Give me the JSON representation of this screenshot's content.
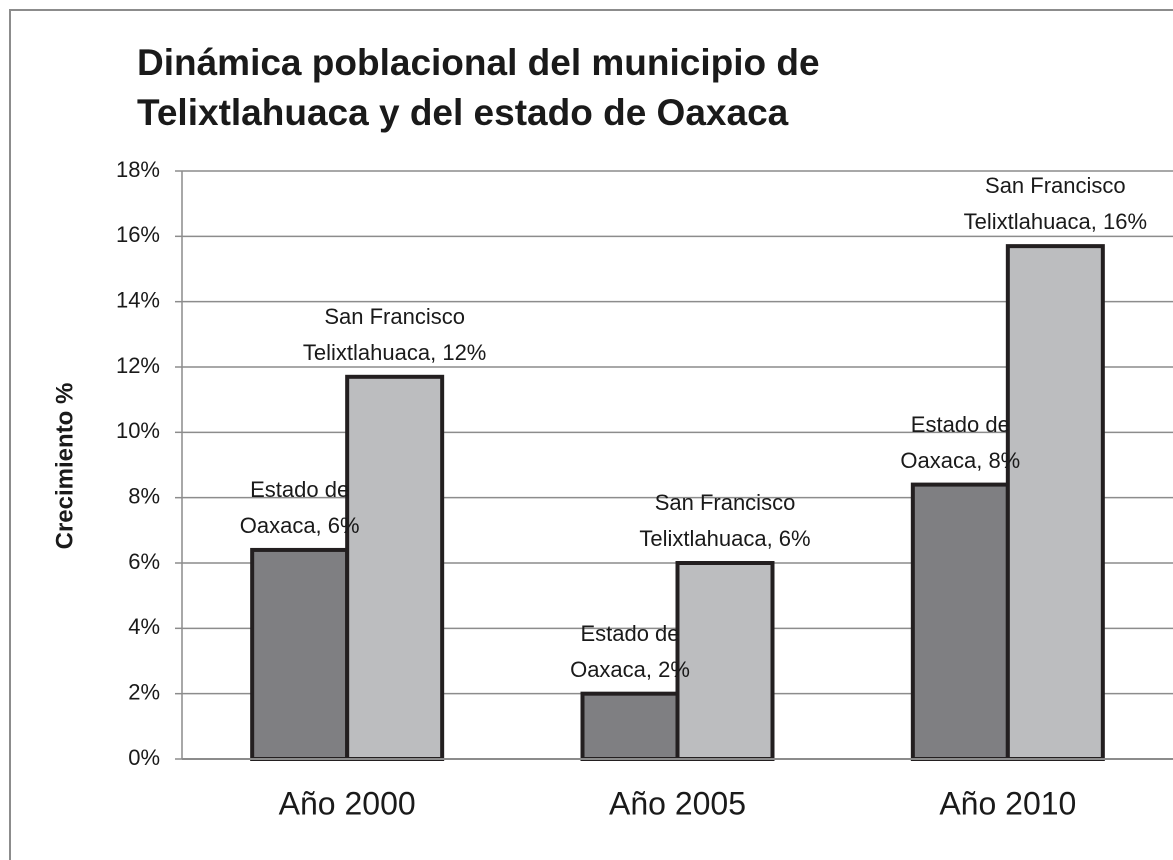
{
  "chart_data": {
    "type": "bar",
    "title": "Dinámica poblacional del municipio de Telixtlahuaca y del estado de Oaxaca",
    "ylabel": "Crecimiento %",
    "categories": [
      "Año 2000",
      "Año 2005",
      "Año 2010"
    ],
    "series": [
      {
        "color": "#7f7f82",
        "values": [
          6.4,
          2.0,
          8.4
        ],
        "value_labels": [
          "Estado de Oaxaca, 6%",
          "Estado de Oaxaca, 2%",
          "Estado de Oaxaca, 8%"
        ]
      },
      {
        "color": "#bcbdbf",
        "values": [
          11.7,
          6.0,
          15.7
        ],
        "value_labels": [
          "San Francisco Telixtlahuaca, 12%",
          "San Francisco Telixtlahuaca, 6%",
          "San Francisco Telixtlahuaca, 16%"
        ]
      }
    ],
    "ylim": [
      0,
      18
    ],
    "yticks": [
      {
        "value": 0,
        "label": "0%"
      },
      {
        "value": 2,
        "label": "2%"
      },
      {
        "value": 4,
        "label": "4%"
      },
      {
        "value": 6,
        "label": "6%"
      },
      {
        "value": 8,
        "label": "8%"
      },
      {
        "value": 10,
        "label": "10%"
      },
      {
        "value": 12,
        "label": "12%"
      },
      {
        "value": 14,
        "label": "14%"
      },
      {
        "value": 16,
        "label": "16%"
      },
      {
        "value": 18,
        "label": "18%"
      }
    ],
    "grid": true
  }
}
